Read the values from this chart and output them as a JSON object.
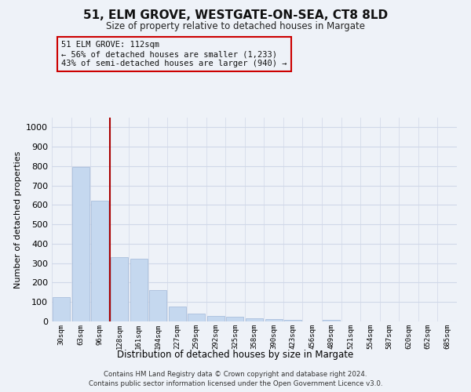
{
  "title_line1": "51, ELM GROVE, WESTGATE-ON-SEA, CT8 8LD",
  "title_line2": "Size of property relative to detached houses in Margate",
  "xlabel": "Distribution of detached houses by size in Margate",
  "ylabel": "Number of detached properties",
  "footer_line1": "Contains HM Land Registry data © Crown copyright and database right 2024.",
  "footer_line2": "Contains public sector information licensed under the Open Government Licence v3.0.",
  "annotation_line1": "51 ELM GROVE: 112sqm",
  "annotation_line2": "← 56% of detached houses are smaller (1,233)",
  "annotation_line3": "43% of semi-detached houses are larger (940) →",
  "bar_labels": [
    "30sqm",
    "63sqm",
    "96sqm",
    "128sqm",
    "161sqm",
    "194sqm",
    "227sqm",
    "259sqm",
    "292sqm",
    "325sqm",
    "358sqm",
    "390sqm",
    "423sqm",
    "456sqm",
    "489sqm",
    "521sqm",
    "554sqm",
    "587sqm",
    "620sqm",
    "652sqm",
    "685sqm"
  ],
  "bar_values": [
    125,
    795,
    620,
    330,
    325,
    160,
    75,
    40,
    27,
    25,
    17,
    13,
    8,
    0,
    10,
    0,
    0,
    0,
    0,
    0,
    0
  ],
  "bar_color": "#c5d8ef",
  "bar_edge_color": "#a0b8d8",
  "vline_color": "#aa0000",
  "vline_x": 2.5,
  "annotation_box_color": "#cc0000",
  "grid_color": "#d0d8e8",
  "background_color": "#eef2f8",
  "ylim": [
    0,
    1050
  ],
  "yticks": [
    0,
    100,
    200,
    300,
    400,
    500,
    600,
    700,
    800,
    900,
    1000
  ]
}
